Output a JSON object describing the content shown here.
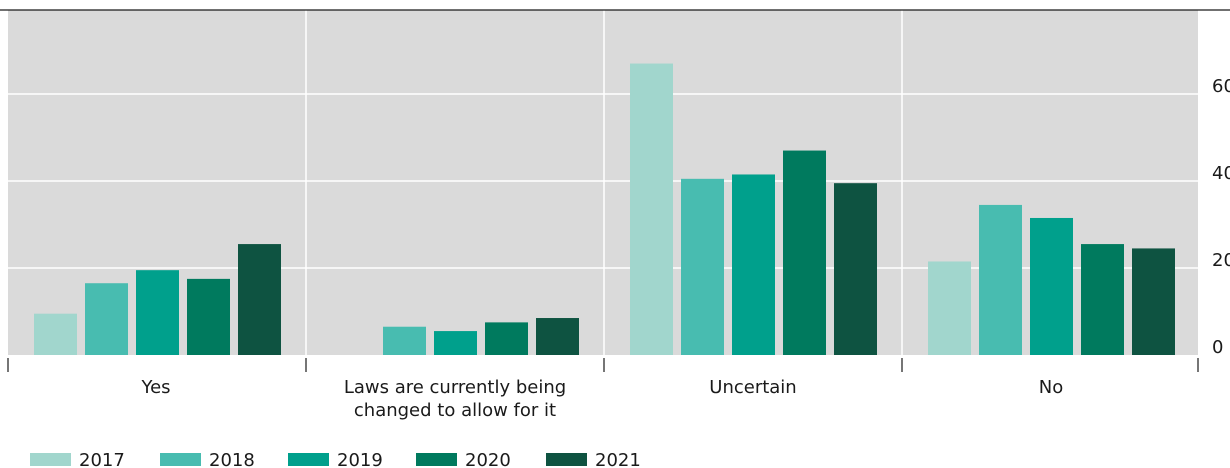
{
  "chart_data": {
    "type": "bar",
    "title": "",
    "xlabel": "",
    "ylabel": "",
    "ylim": [
      0,
      80
    ],
    "yticks": [
      0,
      20,
      40,
      60
    ],
    "ytick_labels": [
      "0",
      "20",
      "40",
      "60"
    ],
    "grid": true,
    "legend_position": "bottom-left",
    "categories": [
      [
        "Yes"
      ],
      [
        "Laws are currently being",
        "changed to allow for it"
      ],
      [
        "Uncertain"
      ],
      [
        "No"
      ]
    ],
    "series": [
      {
        "name": "2017",
        "color": "#a1d6cd",
        "values": [
          9.5,
          null,
          67,
          21.5
        ]
      },
      {
        "name": "2018",
        "color": "#48bcb0",
        "values": [
          16.5,
          6.5,
          40.5,
          34.5
        ]
      },
      {
        "name": "2019",
        "color": "#00a08c",
        "values": [
          19.5,
          5.5,
          41.5,
          31.5
        ]
      },
      {
        "name": "2020",
        "color": "#007a5e",
        "values": [
          17.5,
          7.5,
          47,
          25.5
        ]
      },
      {
        "name": "2021",
        "color": "#0e5341",
        "values": [
          25.5,
          8.5,
          39.5,
          24.5
        ]
      }
    ],
    "plot_background": "#dadada",
    "grid_color": "#ffffff"
  }
}
